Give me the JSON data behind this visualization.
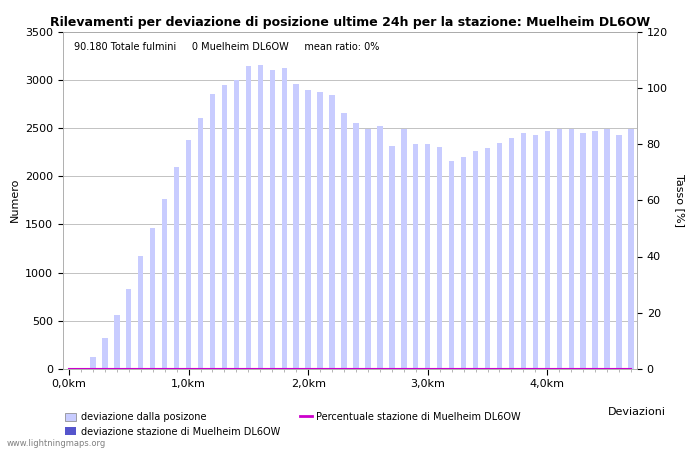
{
  "title": "Rilevamenti per deviazione di posizione ultime 24h per la stazione: Muelheim DL6OW",
  "info_text": "90.180 Totale fulmini     0 Muelheim DL6OW     mean ratio: 0%",
  "ylabel_left": "Numero",
  "ylabel_right": "Tasso [%]",
  "xlabel": "Deviazioni",
  "watermark": "www.lightningmaps.org",
  "ylim_left": [
    0,
    3500
  ],
  "ylim_right": [
    0,
    120
  ],
  "yticks_left": [
    0,
    500,
    1000,
    1500,
    2000,
    2500,
    3000,
    3500
  ],
  "yticks_right": [
    0,
    20,
    40,
    60,
    80,
    100,
    120
  ],
  "xtick_labels": [
    "0,0km",
    "1,0km",
    "2,0km",
    "3,0km",
    "4,0km"
  ],
  "xtick_positions": [
    0,
    10,
    20,
    30,
    40
  ],
  "bar_color_light": "#c8ccff",
  "bar_color_dark": "#5555cc",
  "line_color": "#cc00cc",
  "bar_values": [
    0,
    0,
    120,
    320,
    560,
    830,
    1170,
    1460,
    1760,
    2100,
    2380,
    2600,
    2850,
    2950,
    3000,
    3140,
    3150,
    3100,
    3120,
    2960,
    2890,
    2870,
    2840,
    2650,
    2550,
    2490,
    2520,
    2310,
    2490,
    2330,
    2330,
    2300,
    2160,
    2200,
    2260,
    2290,
    2340,
    2400,
    2450,
    2430,
    2470,
    2490,
    2490,
    2450,
    2470,
    2490,
    2430,
    2490
  ],
  "bar_dark_values": [
    0,
    0,
    0,
    0,
    0,
    0,
    0,
    0,
    0,
    0,
    0,
    0,
    0,
    0,
    0,
    0,
    0,
    0,
    0,
    0,
    0,
    0,
    0,
    0,
    0,
    0,
    0,
    0,
    0,
    0,
    0,
    0,
    0,
    0,
    0,
    0,
    0,
    0,
    0,
    0,
    0,
    0,
    0,
    0,
    0,
    0,
    0,
    0
  ],
  "line_values": [
    0,
    0,
    0,
    0,
    0,
    0,
    0,
    0,
    0,
    0,
    0,
    0,
    0,
    0,
    0,
    0,
    0,
    0,
    0,
    0,
    0,
    0,
    0,
    0,
    0,
    0,
    0,
    0,
    0,
    0,
    0,
    0,
    0,
    0,
    0,
    0,
    0,
    0,
    0,
    0,
    0,
    0,
    0,
    0,
    0,
    0,
    0,
    0
  ],
  "legend_label_light": "deviazione dalla posizone",
  "legend_label_dark": "deviazione stazione di Muelheim DL6OW",
  "legend_label_line": "Percentuale stazione di Muelheim DL6OW",
  "n_bars": 48,
  "background_color": "#ffffff",
  "grid_color": "#aaaaaa",
  "title_fontsize": 9,
  "axis_fontsize": 8,
  "tick_fontsize": 8
}
